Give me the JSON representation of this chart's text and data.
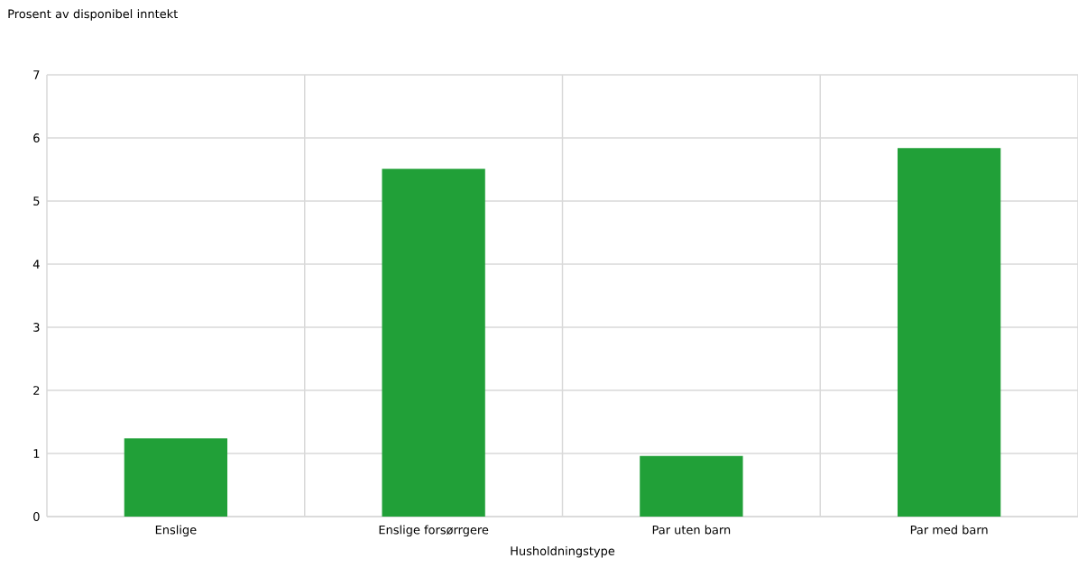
{
  "chart_data": {
    "type": "bar",
    "ylabel": "Prosent av disponibel inntekt",
    "xlabel": "Husholdningstype",
    "categories": [
      "Enslige",
      "Enslige forsørrgere",
      "Par uten barn",
      "Par med barn"
    ],
    "values": [
      1.24,
      5.51,
      0.96,
      5.84
    ],
    "color": "#21a038",
    "ylim": [
      0,
      7
    ],
    "yticks": [
      0,
      1,
      2,
      3,
      4,
      5,
      6,
      7
    ],
    "grid": true
  }
}
